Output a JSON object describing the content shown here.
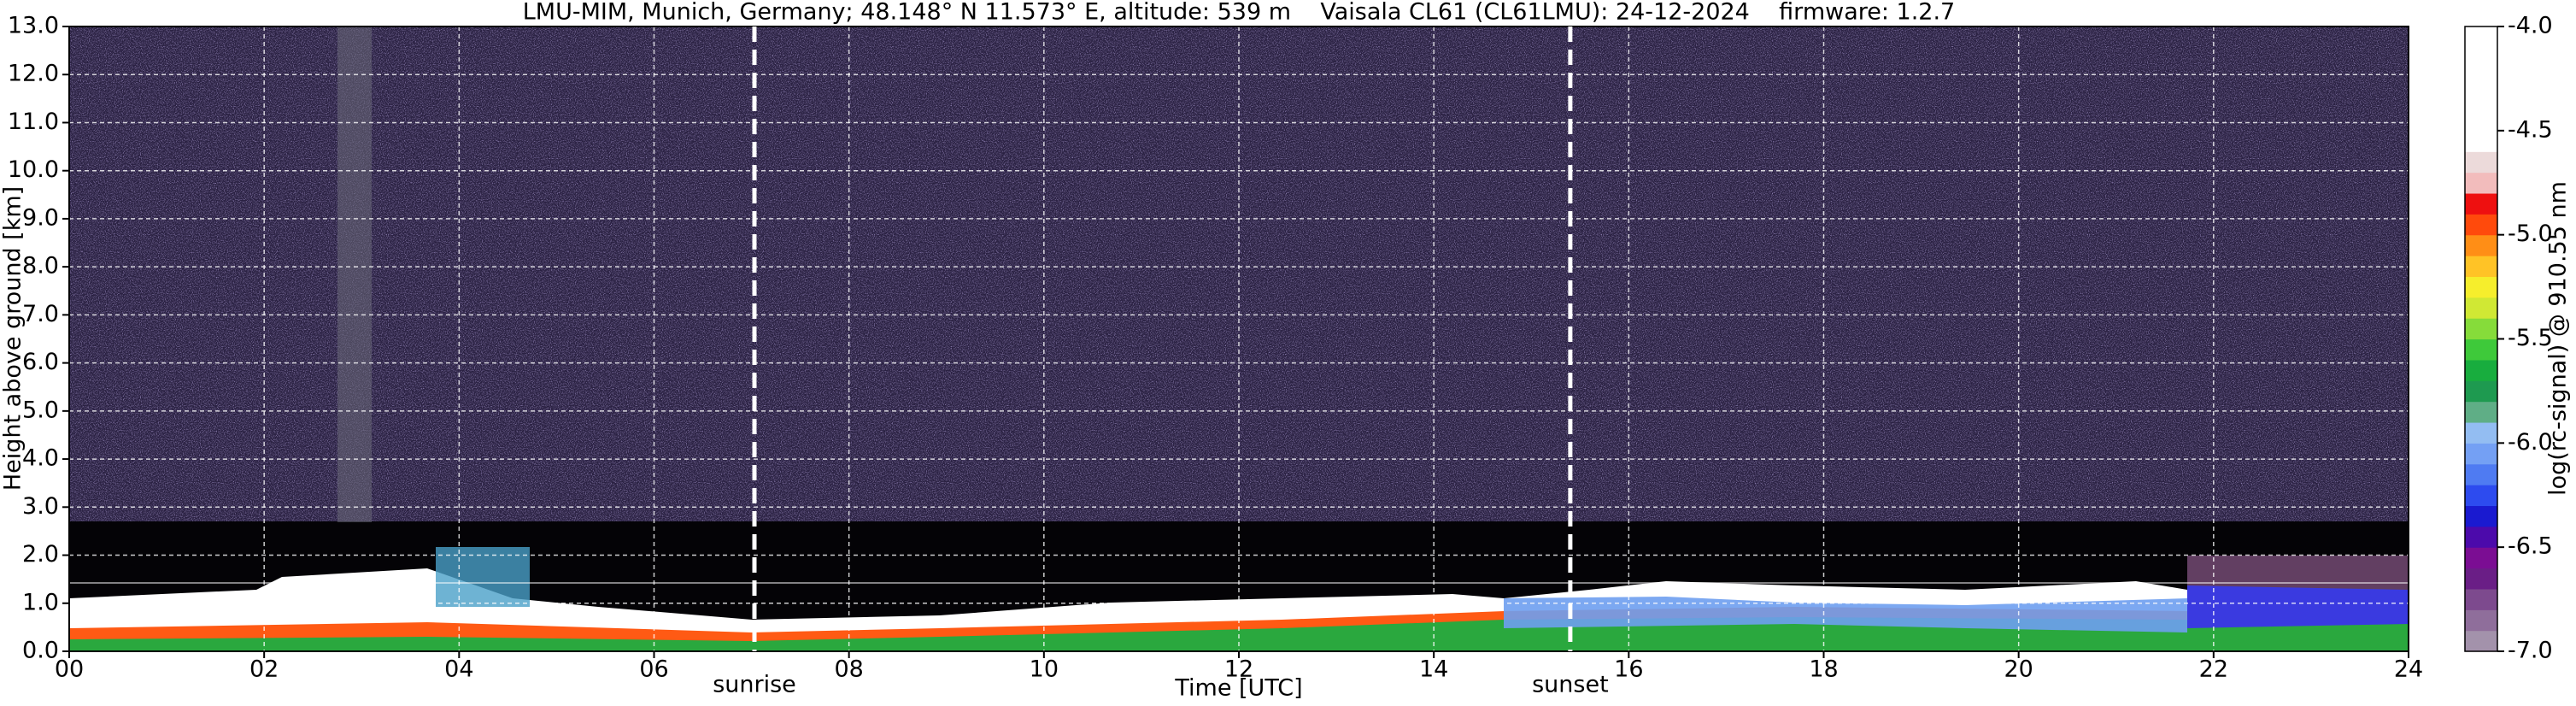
{
  "chart_data": {
    "type": "heatmap",
    "title": "LMU-MIM, Munich, Germany; 48.148° N 11.573° E, altitude: 539 m    Vaisala CL61 (CL61LMU): 24-12-2024    firmware: 1.2.7",
    "xlabel": "Time [UTC]",
    "ylabel": "Height above ground [km]",
    "colorbar_label": "log(rc-signal) @ 910.55 nm",
    "xlim": [
      0,
      24
    ],
    "xticks": [
      {
        "value": 0,
        "label": "00"
      },
      {
        "value": 2,
        "label": "02"
      },
      {
        "value": 4,
        "label": "04"
      },
      {
        "value": 6,
        "label": "06"
      },
      {
        "value": 8,
        "label": "08"
      },
      {
        "value": 10,
        "label": "10"
      },
      {
        "value": 12,
        "label": "12"
      },
      {
        "value": 14,
        "label": "14"
      },
      {
        "value": 16,
        "label": "16"
      },
      {
        "value": 18,
        "label": "18"
      },
      {
        "value": 20,
        "label": "20"
      },
      {
        "value": 22,
        "label": "22"
      },
      {
        "value": 24,
        "label": "24"
      }
    ],
    "ylim": [
      0,
      13
    ],
    "yticks": [
      {
        "value": 0,
        "label": "0.0"
      },
      {
        "value": 1,
        "label": "1.0"
      },
      {
        "value": 2,
        "label": "2.0"
      },
      {
        "value": 3,
        "label": "3.0"
      },
      {
        "value": 4,
        "label": "4.0"
      },
      {
        "value": 5,
        "label": "5.0"
      },
      {
        "value": 6,
        "label": "6.0"
      },
      {
        "value": 7,
        "label": "7.0"
      },
      {
        "value": 8,
        "label": "8.0"
      },
      {
        "value": 9,
        "label": "9.0"
      },
      {
        "value": 10,
        "label": "10.0"
      },
      {
        "value": 11,
        "label": "11.0"
      },
      {
        "value": 12,
        "label": "12.0"
      },
      {
        "value": 13,
        "label": "13.0"
      }
    ],
    "grid": true,
    "clim": [
      -7,
      -4
    ],
    "cticks": [
      {
        "value": -7,
        "label": "-7.0"
      },
      {
        "value": -6.5,
        "label": "-6.5"
      },
      {
        "value": -6,
        "label": "-6.0"
      },
      {
        "value": -5.5,
        "label": "-5.5"
      },
      {
        "value": -5,
        "label": "-5.0"
      },
      {
        "value": -4.5,
        "label": "-4.5"
      },
      {
        "value": -4,
        "label": "-4.0"
      }
    ],
    "colors": [
      "#a392ab",
      "#8f6e9b",
      "#7d4a8e",
      "#6a1e86",
      "#7b0d93",
      "#4c0aab",
      "#1a1ad0",
      "#2d4bef",
      "#4f7bf2",
      "#74a0f4",
      "#93bdf2",
      "#5fae86",
      "#1e9a50",
      "#18ad3e",
      "#3ec93a",
      "#86dc3a",
      "#d0e834",
      "#f6ee2c",
      "#ffc326",
      "#ff8e16",
      "#ff4a0c",
      "#ee1010",
      "#f2bcbc",
      "#ecdada",
      "#ffffff",
      "#ffffff",
      "#ffffff",
      "#ffffff",
      "#ffffff",
      "#ffffff"
    ],
    "vlines": [
      {
        "x": 7.03,
        "label": "sunrise"
      },
      {
        "x": 15.4,
        "label": "sunset"
      }
    ]
  }
}
